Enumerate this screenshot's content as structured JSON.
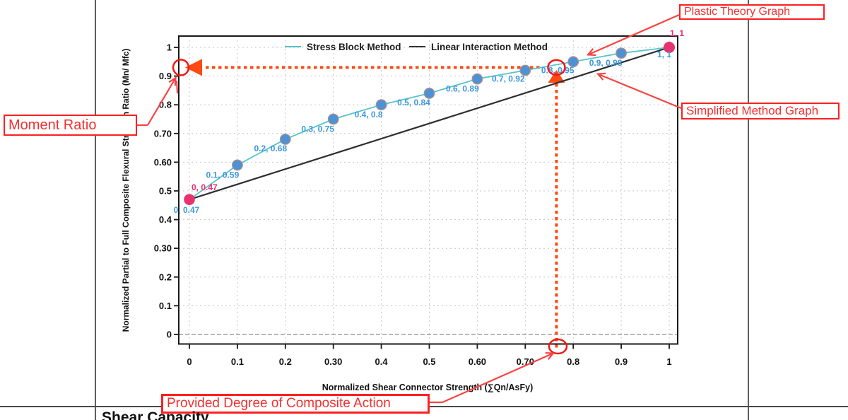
{
  "page": {
    "section_heading": "Shear Capacity"
  },
  "annotations": {
    "plastic_theory": "Plastic Theory Graph",
    "simplified_method": "Simplified Method Graph",
    "moment_ratio": "Moment Ratio",
    "provided_degree": "Provided Degree of Composite Action"
  },
  "chart_data": {
    "type": "line",
    "title": "",
    "xlabel": "Normalized Shear Connector Strength (∑Qn/AsFy)",
    "ylabel": "Normalized Partial to Full Composite Flexural Strength Ratio (Mn/ Mfc)",
    "xlim": [
      0,
      1
    ],
    "ylim": [
      0,
      1
    ],
    "grid": true,
    "legend_position": "top-center",
    "x_ticks": [
      0,
      0.1,
      0.2,
      0.3,
      0.4,
      0.5,
      0.6,
      0.7,
      0.8,
      0.9,
      1
    ],
    "x_tick_labels": [
      "0",
      "0.1",
      "0.2",
      "0.30",
      "0.4",
      "0.5",
      "0.60",
      "0.70",
      "0.8",
      "0.9",
      "1"
    ],
    "y_ticks": [
      0,
      0.1,
      0.2,
      0.3,
      0.4,
      0.5,
      0.6,
      0.7,
      0.8,
      0.9,
      1
    ],
    "y_tick_labels": [
      "0",
      "0.1",
      "0.2",
      "0.30",
      "0.4",
      "0.5",
      "0.60",
      "0.70",
      "0.8",
      "0.9",
      "1"
    ],
    "series": [
      {
        "name": "Stress Block Method",
        "color": "#56c3cb",
        "x": [
          0,
          0.1,
          0.2,
          0.3,
          0.4,
          0.5,
          0.6,
          0.7,
          0.8,
          0.9,
          1
        ],
        "y": [
          0.47,
          0.59,
          0.68,
          0.75,
          0.8,
          0.84,
          0.89,
          0.92,
          0.95,
          0.98,
          1
        ],
        "point_labels": [
          "0, 0.47",
          "0.1, 0.59",
          "0.2, 0.68",
          "0.3, 0.75",
          "0.4, 0.8",
          "0.5, 0.84",
          "0.6, 0.89",
          "0.7, 0.92",
          "0.8, 0.95",
          "0.9, 0.98",
          "1, 1"
        ],
        "label_color": "#3c97e0",
        "marker_color": "#4c92d4",
        "marker_edge_color": "#ad8d90"
      },
      {
        "name": "Linear Interaction Method",
        "color": "#2e2e2e",
        "x": [
          0,
          1
        ],
        "y": [
          0.47,
          1
        ],
        "point_labels": [
          "0, 0.47",
          "1, 1"
        ],
        "label_color": "#ea2e74",
        "marker_color": "#e6326e"
      }
    ],
    "highlight": {
      "x": 0.765,
      "y": 0.93,
      "dash_color": "#ff4a12",
      "circle_color": "#f81515",
      "connector_color": "#f84343"
    }
  }
}
